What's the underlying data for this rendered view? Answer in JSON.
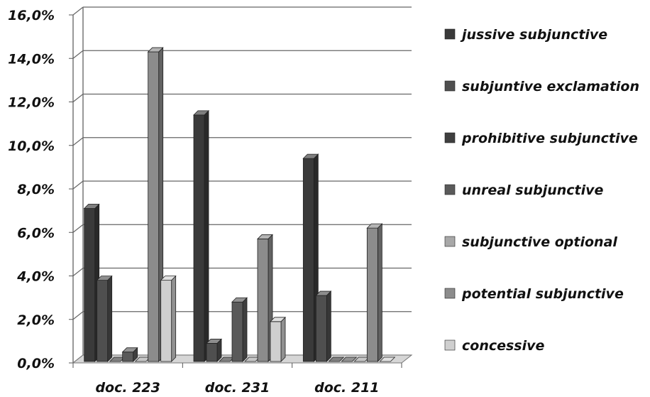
{
  "chart_data": {
    "type": "bar",
    "categories": [
      "doc. 223",
      "doc. 231",
      "doc. 211"
    ],
    "series": [
      {
        "name": "jussive subjunctive",
        "values": [
          7.1,
          11.4,
          9.4
        ],
        "color": "#3a3a3a"
      },
      {
        "name": "subjuntive exclamation",
        "values": [
          3.8,
          0.9,
          3.1
        ],
        "color": "#4f4f4f"
      },
      {
        "name": "prohibitive subjunctive",
        "values": [
          0.0,
          0.0,
          0.0
        ],
        "color": "#3f3f3f"
      },
      {
        "name": "unreal subjunctive",
        "values": [
          0.5,
          2.8,
          0.0
        ],
        "color": "#5a5a5a"
      },
      {
        "name": "subjunctive optional",
        "values": [
          0.0,
          0.0,
          0.0
        ],
        "color": "#a8a8a8"
      },
      {
        "name": "potential subjunctive",
        "values": [
          14.3,
          5.7,
          6.2
        ],
        "color": "#8c8c8c"
      },
      {
        "name": "concessive",
        "values": [
          3.8,
          1.9,
          0.0
        ],
        "color": "#cfcfcf"
      }
    ],
    "y_ticks": [
      "0,0%",
      "2,0%",
      "4,0%",
      "6,0%",
      "8,0%",
      "10,0%",
      "12,0%",
      "14,0%",
      "16,0%"
    ],
    "ylim": [
      0,
      16
    ],
    "grid": true,
    "legend_position": "right",
    "title": "",
    "xlabel": "",
    "ylabel": ""
  }
}
